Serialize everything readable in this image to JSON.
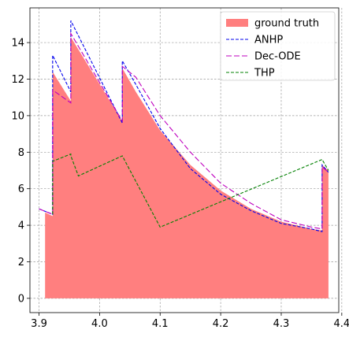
{
  "chart_data": {
    "type": "line",
    "title": "",
    "xlabel": "",
    "ylabel": "",
    "xlim": [
      3.885,
      4.395
    ],
    "ylim": [
      -0.78,
      15.9
    ],
    "xticks": [
      3.9,
      4.0,
      4.1,
      4.2,
      4.3,
      4.4
    ],
    "xtick_labels": [
      "3.9",
      "4.0",
      "4.1",
      "4.2",
      "4.3",
      "4.4"
    ],
    "yticks": [
      0,
      2,
      4,
      6,
      8,
      10,
      12,
      14
    ],
    "ytick_labels": [
      "0",
      "2",
      "4",
      "6",
      "8",
      "10",
      "12",
      "14"
    ],
    "grid": true,
    "legend_position": "top-right",
    "series": [
      {
        "name": "ground truth",
        "kind": "filled-area",
        "color": "#ff7f7f",
        "x": [
          3.91,
          3.91,
          3.9225,
          3.9225,
          3.9525,
          3.9525,
          4.0375,
          4.0375,
          4.06,
          4.1,
          4.15,
          4.2,
          4.25,
          4.3,
          4.35,
          4.3675,
          4.3675,
          4.378,
          4.378
        ],
        "y": [
          0,
          4.7,
          4.5,
          12.4,
          10.8,
          14.3,
          9.7,
          12.6,
          11.3,
          9.2,
          7.3,
          5.9,
          4.9,
          4.2,
          3.8,
          3.72,
          7.3,
          7.0,
          0
        ]
      },
      {
        "name": "ANHP",
        "kind": "line",
        "dash": "4,2",
        "color": "#0000ee",
        "x": [
          3.9,
          3.9225,
          3.9225,
          3.9525,
          3.9525,
          4.0375,
          4.0375,
          4.06,
          4.1,
          4.15,
          4.2,
          4.25,
          4.3,
          4.35,
          4.3675,
          4.3675,
          4.378
        ],
        "y": [
          4.9,
          4.6,
          13.3,
          11.3,
          15.2,
          9.6,
          13.0,
          11.7,
          9.3,
          7.1,
          5.7,
          4.8,
          4.1,
          3.8,
          3.65,
          7.3,
          6.9
        ]
      },
      {
        "name": "Dec-ODE",
        "kind": "line",
        "dash": "7,3",
        "color": "#bf00bf",
        "x": [
          3.9,
          3.9225,
          3.9225,
          3.9525,
          3.9525,
          4.0375,
          4.0375,
          4.06,
          4.1,
          4.15,
          4.2,
          4.25,
          4.3,
          4.35,
          4.3675,
          4.3675,
          4.378
        ],
        "y": [
          4.9,
          4.6,
          11.4,
          10.7,
          14.5,
          9.7,
          12.7,
          12.1,
          10.0,
          8.0,
          6.3,
          5.2,
          4.3,
          3.9,
          3.8,
          7.2,
          6.9
        ]
      },
      {
        "name": "THP",
        "kind": "line",
        "dash": "4,2",
        "color": "#008000",
        "x": [
          3.9225,
          3.9225,
          3.9525,
          3.9525,
          3.965,
          4.0375,
          4.1,
          4.3675,
          4.378
        ],
        "y": [
          4.6,
          7.5,
          7.9,
          7.8,
          6.7,
          7.8,
          3.9,
          7.6,
          7.0
        ]
      }
    ]
  }
}
